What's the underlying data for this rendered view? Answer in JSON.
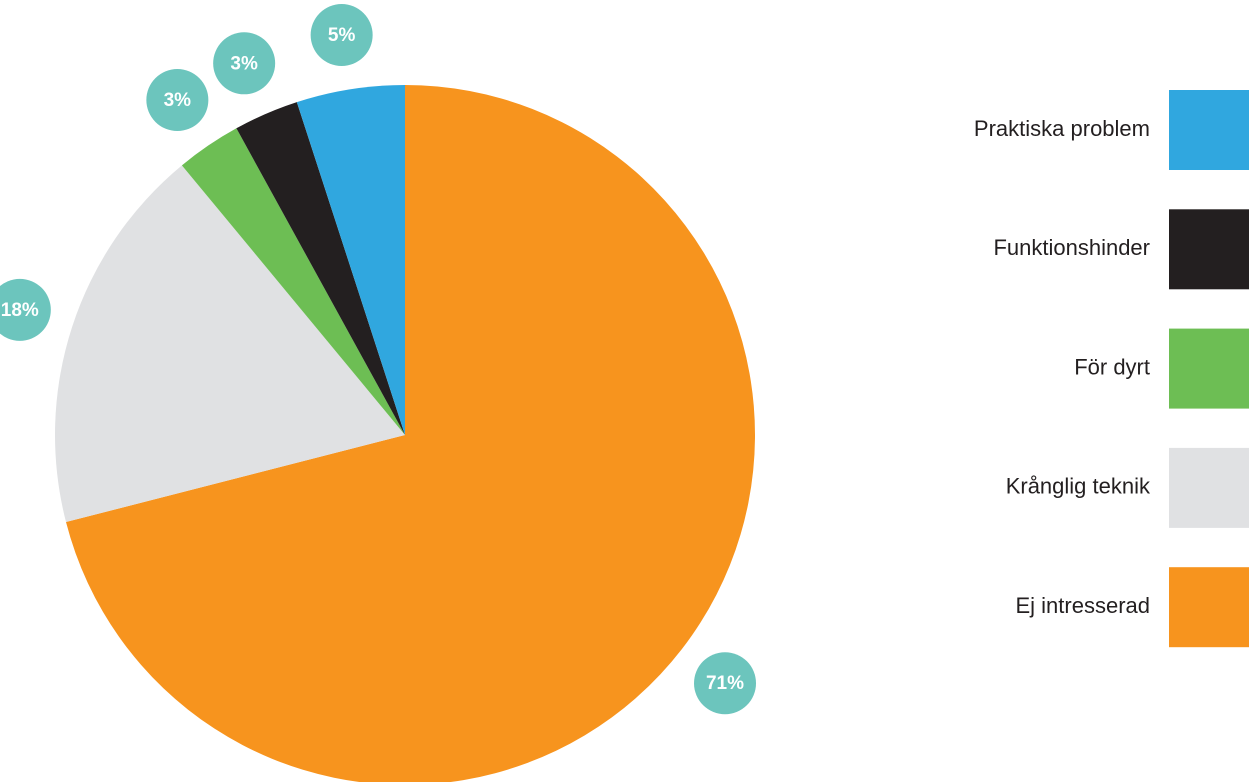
{
  "chart_data": {
    "type": "pie",
    "categories": [
      "Ej intresserad",
      "Krånglig teknik",
      "För dyrt",
      "Funktionshinder",
      "Praktiska problem"
    ],
    "values": [
      71,
      18,
      3,
      3,
      5
    ],
    "value_labels": [
      "71%",
      "18%",
      "3%",
      "3%",
      "5%"
    ],
    "colors": [
      "#f7941e",
      "#e0e1e3",
      "#6dbe54",
      "#231f20",
      "#30a7df"
    ],
    "label_color": "#6cc5bd",
    "legend": "right"
  }
}
